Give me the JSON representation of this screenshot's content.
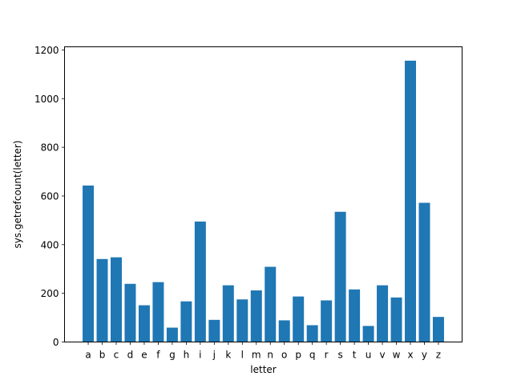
{
  "chart_data": {
    "type": "bar",
    "categories": [
      "a",
      "b",
      "c",
      "d",
      "e",
      "f",
      "g",
      "h",
      "i",
      "j",
      "k",
      "l",
      "m",
      "n",
      "o",
      "p",
      "q",
      "r",
      "s",
      "t",
      "u",
      "v",
      "w",
      "x",
      "y",
      "z"
    ],
    "values": [
      643,
      341,
      348,
      239,
      151,
      246,
      59,
      167,
      495,
      91,
      233,
      175,
      212,
      309,
      89,
      187,
      69,
      171,
      535,
      216,
      66,
      233,
      183,
      1156,
      572,
      103
    ],
    "xlabel": "letter",
    "ylabel": "sys.getrefcount(letter)",
    "ylim": [
      0,
      1213
    ],
    "yticks": [
      0,
      200,
      400,
      600,
      800,
      1000,
      1200
    ],
    "bar_color": "#1f77b4",
    "grid": false,
    "legend": "none"
  }
}
